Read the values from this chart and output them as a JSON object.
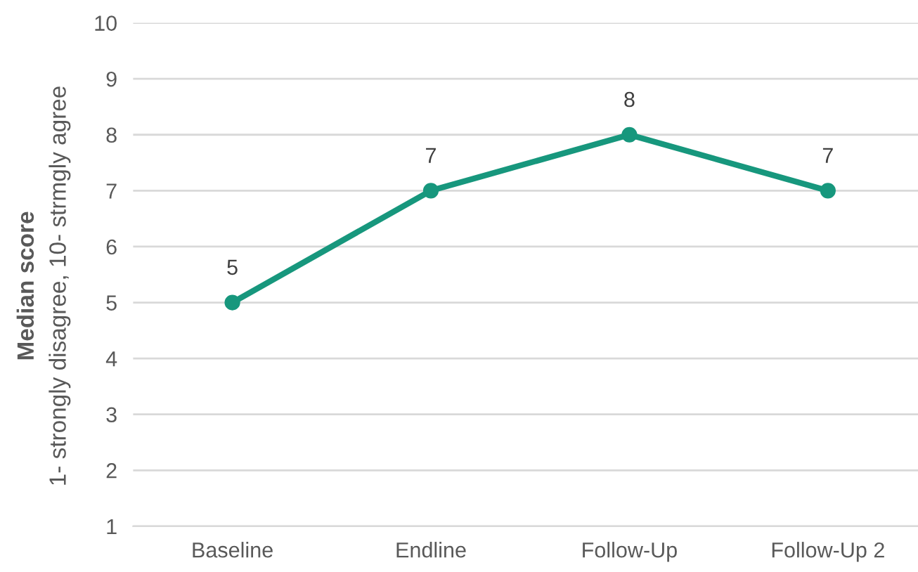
{
  "chart_data": {
    "type": "line",
    "ylabel": "Median score\n1- strongly disagree, 10- strmgly agree",
    "categories": [
      "Baseline",
      "Endline",
      "Follow-Up",
      "Follow-Up 2"
    ],
    "series": [
      {
        "color": "#17977d",
        "values": [
          5,
          7,
          8,
          7
        ]
      }
    ],
    "ylim": [
      1,
      10
    ],
    "yticks": [
      1,
      2,
      3,
      4,
      5,
      6,
      7,
      8,
      9,
      10
    ],
    "grid": "y",
    "marker": "circle",
    "line_style": "solid",
    "data_labels": true,
    "legend": false
  }
}
